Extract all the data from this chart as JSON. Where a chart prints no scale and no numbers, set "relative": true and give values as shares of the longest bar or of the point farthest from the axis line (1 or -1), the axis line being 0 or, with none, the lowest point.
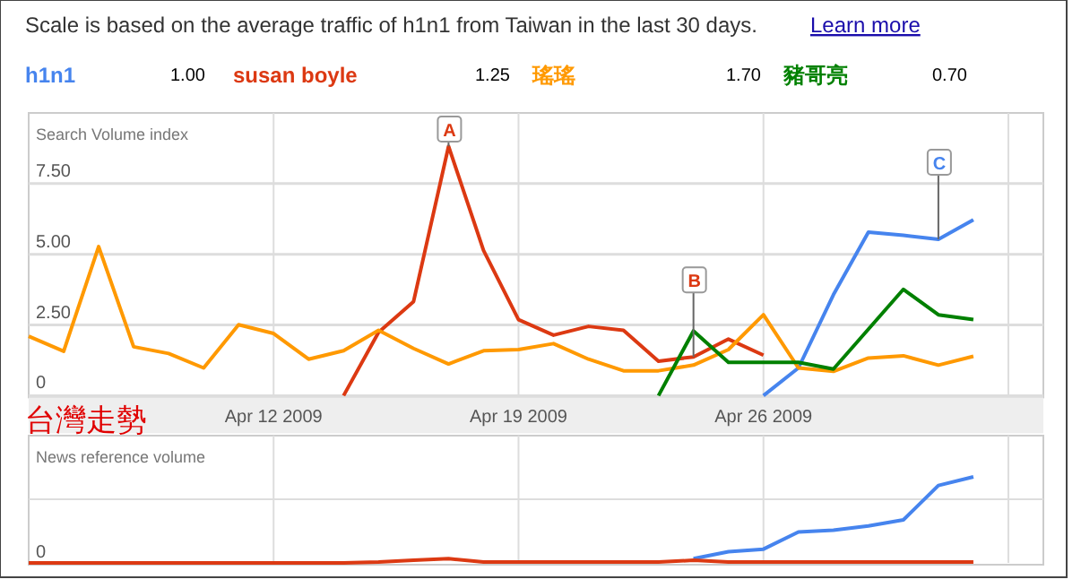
{
  "chart_data": [
    {
      "type": "line",
      "title": "Scale is based on the average traffic of h1n1 from Taiwan in the last 30 days.",
      "ylabel": "Search Volume index",
      "x": [
        "2009-04-05",
        "2009-04-06",
        "2009-04-07",
        "2009-04-08",
        "2009-04-09",
        "2009-04-10",
        "2009-04-11",
        "2009-04-12",
        "2009-04-13",
        "2009-04-14",
        "2009-04-15",
        "2009-04-16",
        "2009-04-17",
        "2009-04-18",
        "2009-04-19",
        "2009-04-20",
        "2009-04-21",
        "2009-04-22",
        "2009-04-23",
        "2009-04-24",
        "2009-04-25",
        "2009-04-26",
        "2009-04-27",
        "2009-04-28",
        "2009-04-29",
        "2009-04-30",
        "2009-05-01",
        "2009-05-02"
      ],
      "series": [
        {
          "name": "h1n1",
          "color": "#4684ee",
          "values": [
            null,
            null,
            null,
            null,
            null,
            null,
            null,
            null,
            null,
            null,
            null,
            null,
            null,
            null,
            null,
            null,
            null,
            null,
            null,
            null,
            null,
            0,
            0.98,
            3.57,
            5.78,
            5.67,
            5.53,
            6.22
          ]
        },
        {
          "name": "susan boyle",
          "color": "#dc3912",
          "values": [
            null,
            null,
            null,
            null,
            null,
            null,
            null,
            null,
            null,
            0,
            2.24,
            3.33,
            8.82,
            5.14,
            2.69,
            2.14,
            2.45,
            2.31,
            1.22,
            1.37,
            2.0,
            1.43,
            null,
            null,
            null,
            null,
            null,
            null
          ]
        },
        {
          "name": "瑤瑤",
          "color": "#ff9900",
          "values": [
            2.1,
            1.57,
            5.27,
            1.73,
            1.49,
            0.98,
            2.51,
            2.2,
            1.29,
            1.59,
            2.31,
            1.67,
            1.12,
            1.59,
            1.63,
            1.84,
            1.29,
            0.88,
            0.88,
            1.08,
            1.63,
            2.86,
            0.98,
            0.86,
            1.33,
            1.41,
            1.08,
            1.39
          ]
        },
        {
          "name": "豬哥亮",
          "color": "#008000",
          "values": [
            null,
            null,
            null,
            null,
            null,
            null,
            null,
            null,
            null,
            null,
            null,
            null,
            null,
            null,
            null,
            null,
            null,
            null,
            0,
            2.29,
            1.18,
            1.18,
            1.18,
            0.94,
            2.35,
            3.76,
            2.86,
            2.69
          ]
        }
      ],
      "xlim": [
        "2009-04-05",
        "2009-05-04"
      ],
      "xticks": [
        {
          "value": "2009-04-12",
          "label": "Apr 12 2009"
        },
        {
          "value": "2009-04-19",
          "label": "Apr 19 2009"
        },
        {
          "value": "2009-04-26",
          "label": "Apr 26 2009"
        },
        {
          "value": "2009-05-03",
          "label": null
        }
      ],
      "ylim": [
        0,
        10
      ],
      "yticks": [
        0,
        {
          "value": 2.5,
          "label": "2.50"
        },
        {
          "value": 5,
          "label": "5.00"
        },
        {
          "value": 7.5,
          "label": "7.50"
        }
      ],
      "grid": true,
      "legend": "top",
      "annotations": [
        "Learn more",
        "1.00",
        "1.25",
        "1.70",
        "0.70",
        "台灣走勢",
        {
          "text": "A",
          "x": "2009-04-17",
          "y": 8.82
        },
        {
          "text": "B",
          "x": "2009-04-24",
          "y": 1.37
        },
        {
          "text": "C",
          "x": "2009-05-01",
          "y": 5.53
        }
      ]
    },
    {
      "type": "line",
      "relative": true,
      "ylabel": "News reference volume",
      "x": [
        "2009-04-05",
        "2009-04-06",
        "2009-04-07",
        "2009-04-08",
        "2009-04-09",
        "2009-04-10",
        "2009-04-11",
        "2009-04-12",
        "2009-04-13",
        "2009-04-14",
        "2009-04-15",
        "2009-04-16",
        "2009-04-17",
        "2009-04-18",
        "2009-04-19",
        "2009-04-20",
        "2009-04-21",
        "2009-04-22",
        "2009-04-23",
        "2009-04-24",
        "2009-04-25",
        "2009-04-26",
        "2009-04-27",
        "2009-04-28",
        "2009-04-29",
        "2009-04-30",
        "2009-05-01",
        "2009-05-02"
      ],
      "series": [
        {
          "color": "#4684ee",
          "values": [
            null,
            null,
            null,
            null,
            null,
            null,
            null,
            null,
            null,
            null,
            null,
            null,
            null,
            null,
            null,
            null,
            null,
            null,
            null,
            0.05,
            0.13,
            0.16,
            0.36,
            0.38,
            0.43,
            0.5,
            0.9,
            1.0
          ]
        },
        {
          "color": "#dc3912",
          "values": [
            0,
            0,
            0,
            0,
            0,
            0,
            0,
            0,
            0,
            0,
            0.01,
            0.03,
            0.05,
            0.01,
            0.01,
            0.01,
            0.01,
            0.01,
            0.01,
            0.03,
            0.01,
            0.01,
            0.01,
            0.01,
            0.01,
            0.01,
            0.01,
            0.01
          ]
        }
      ],
      "xlim": [
        "2009-04-05",
        "2009-05-04"
      ],
      "xticks": [
        {
          "value": "2009-04-12",
          "label": null
        },
        {
          "value": "2009-04-19",
          "label": null
        },
        {
          "value": "2009-04-26",
          "label": null
        },
        {
          "value": "2009-05-03",
          "label": null
        }
      ],
      "tick_labels": false,
      "grid": true,
      "annotations": [
        "0"
      ]
    }
  ]
}
